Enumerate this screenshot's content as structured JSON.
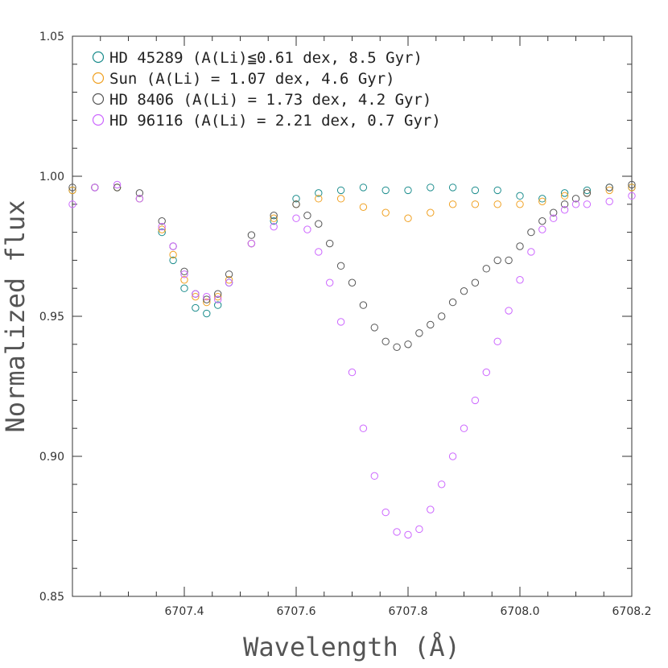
{
  "chart_data": {
    "type": "scatter",
    "xlabel": "Wavelength (Å)",
    "ylabel": "Normalized flux",
    "xlim": [
      6707.2,
      6708.2
    ],
    "ylim": [
      0.85,
      1.05
    ],
    "x_major_ticks": [
      6707.4,
      6707.6,
      6707.8,
      6708.0,
      6708.2
    ],
    "x_tick_labels": [
      "6707.4",
      "6707.6",
      "6707.8",
      "6708.0",
      "6708.2"
    ],
    "y_major_ticks": [
      0.85,
      0.9,
      0.95,
      1.0,
      1.05
    ],
    "y_tick_labels": [
      "0.85",
      "0.90",
      "0.95",
      "1.00",
      "1.05"
    ],
    "grid": false,
    "legend_position": "top-left",
    "marker": "open-circle",
    "series": [
      {
        "name": "HD 45289 (A(Li)≦0.61 dex, 8.5 Gyr)",
        "color": "#1a8c8c",
        "x": [
          6707.2,
          6707.24,
          6707.28,
          6707.32,
          6707.36,
          6707.38,
          6707.4,
          6707.42,
          6707.44,
          6707.46,
          6707.48,
          6707.52,
          6707.56,
          6707.6,
          6707.64,
          6707.68,
          6707.72,
          6707.76,
          6707.8,
          6707.84,
          6707.88,
          6707.92,
          6707.96,
          6708.0,
          6708.04,
          6708.08,
          6708.12,
          6708.16,
          6708.2
        ],
        "y": [
          0.995,
          0.996,
          0.996,
          0.992,
          0.98,
          0.97,
          0.96,
          0.953,
          0.951,
          0.954,
          0.962,
          0.976,
          0.984,
          0.992,
          0.994,
          0.995,
          0.996,
          0.995,
          0.995,
          0.996,
          0.996,
          0.995,
          0.995,
          0.993,
          0.992,
          0.994,
          0.995,
          0.996,
          0.996
        ]
      },
      {
        "name": "Sun (A(Li) = 1.07 dex, 4.6 Gyr)",
        "color": "#f0a020",
        "x": [
          6707.2,
          6707.24,
          6707.28,
          6707.32,
          6707.36,
          6707.38,
          6707.4,
          6707.42,
          6707.44,
          6707.46,
          6707.48,
          6707.52,
          6707.56,
          6707.6,
          6707.64,
          6707.68,
          6707.72,
          6707.76,
          6707.8,
          6707.84,
          6707.88,
          6707.92,
          6707.96,
          6708.0,
          6708.04,
          6708.08,
          6708.12,
          6708.16,
          6708.2
        ],
        "y": [
          0.995,
          0.996,
          0.996,
          0.992,
          0.981,
          0.972,
          0.963,
          0.957,
          0.955,
          0.957,
          0.963,
          0.976,
          0.985,
          0.99,
          0.992,
          0.992,
          0.989,
          0.987,
          0.985,
          0.987,
          0.99,
          0.99,
          0.99,
          0.99,
          0.991,
          0.993,
          0.994,
          0.995,
          0.996
        ]
      },
      {
        "name": "HD 8406 (A(Li) = 1.73 dex, 4.2 Gyr)",
        "color": "#555555",
        "x": [
          6707.2,
          6707.24,
          6707.28,
          6707.32,
          6707.36,
          6707.38,
          6707.4,
          6707.42,
          6707.44,
          6707.46,
          6707.48,
          6707.52,
          6707.56,
          6707.6,
          6707.62,
          6707.64,
          6707.66,
          6707.68,
          6707.7,
          6707.72,
          6707.74,
          6707.76,
          6707.78,
          6707.8,
          6707.82,
          6707.84,
          6707.86,
          6707.88,
          6707.9,
          6707.92,
          6707.94,
          6707.96,
          6707.98,
          6708.0,
          6708.02,
          6708.04,
          6708.06,
          6708.08,
          6708.1,
          6708.12,
          6708.16,
          6708.2
        ],
        "y": [
          0.996,
          0.996,
          0.996,
          0.994,
          0.984,
          0.975,
          0.966,
          0.958,
          0.956,
          0.958,
          0.965,
          0.979,
          0.986,
          0.99,
          0.986,
          0.983,
          0.976,
          0.968,
          0.962,
          0.954,
          0.946,
          0.941,
          0.939,
          0.94,
          0.944,
          0.947,
          0.95,
          0.955,
          0.959,
          0.962,
          0.967,
          0.97,
          0.97,
          0.975,
          0.98,
          0.984,
          0.987,
          0.99,
          0.992,
          0.994,
          0.996,
          0.997
        ]
      },
      {
        "name": "HD 96116 (A(Li) = 2.21 dex, 0.7 Gyr)",
        "color": "#cc66ff",
        "x": [
          6707.2,
          6707.24,
          6707.28,
          6707.32,
          6707.36,
          6707.38,
          6707.4,
          6707.42,
          6707.44,
          6707.46,
          6707.48,
          6707.52,
          6707.56,
          6707.6,
          6707.62,
          6707.64,
          6707.66,
          6707.68,
          6707.7,
          6707.72,
          6707.74,
          6707.76,
          6707.78,
          6707.8,
          6707.82,
          6707.84,
          6707.86,
          6707.88,
          6707.9,
          6707.92,
          6707.94,
          6707.96,
          6707.98,
          6708.0,
          6708.02,
          6708.04,
          6708.06,
          6708.08,
          6708.1,
          6708.12,
          6708.16,
          6708.2
        ],
        "y": [
          0.99,
          0.996,
          0.997,
          0.992,
          0.982,
          0.975,
          0.965,
          0.958,
          0.957,
          0.956,
          0.962,
          0.976,
          0.982,
          0.985,
          0.981,
          0.973,
          0.962,
          0.948,
          0.93,
          0.91,
          0.893,
          0.88,
          0.873,
          0.872,
          0.874,
          0.881,
          0.89,
          0.9,
          0.91,
          0.92,
          0.93,
          0.941,
          0.952,
          0.963,
          0.973,
          0.981,
          0.985,
          0.988,
          0.99,
          0.99,
          0.991,
          0.993
        ]
      }
    ]
  }
}
